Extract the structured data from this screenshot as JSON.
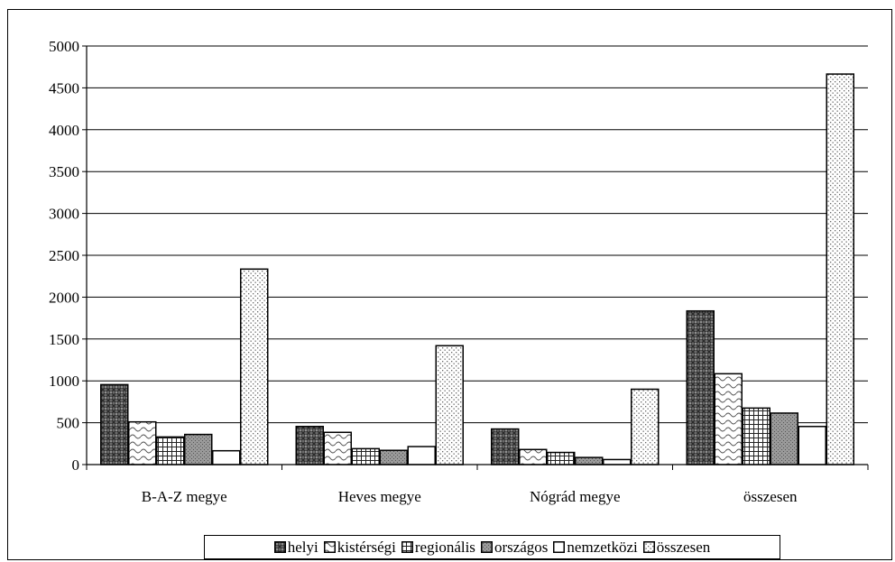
{
  "chart_data": {
    "type": "bar",
    "categories": [
      "B-A-Z megye",
      "Heves megye",
      "Nógrád megye",
      "összesen"
    ],
    "series": [
      {
        "name": "helyi",
        "values": [
          955,
          455,
          425,
          1835
        ],
        "pattern": "pat-helyi"
      },
      {
        "name": "kistérségi",
        "values": [
          510,
          385,
          180,
          1085
        ],
        "pattern": "pat-kisterseg"
      },
      {
        "name": "regionális",
        "values": [
          330,
          190,
          145,
          675
        ],
        "pattern": "pat-regional"
      },
      {
        "name": "országos",
        "values": [
          360,
          170,
          85,
          615
        ],
        "pattern": "pat-orszagos"
      },
      {
        "name": "nemzetközi",
        "values": [
          165,
          215,
          60,
          455
        ],
        "pattern": "none"
      },
      {
        "name": "összesen",
        "values": [
          2335,
          1420,
          900,
          4665
        ],
        "pattern": "pat-osszesen"
      }
    ],
    "ylim": [
      0,
      5000
    ],
    "yticks": [
      "0",
      "500",
      "1000",
      "1500",
      "2000",
      "2500",
      "3000",
      "3500",
      "4000",
      "4500",
      "5000"
    ],
    "grid": true,
    "legend_position": "bottom",
    "colors": {
      "bar_outline": "#000000",
      "background": "#ffffff",
      "grid": "#000000"
    }
  }
}
